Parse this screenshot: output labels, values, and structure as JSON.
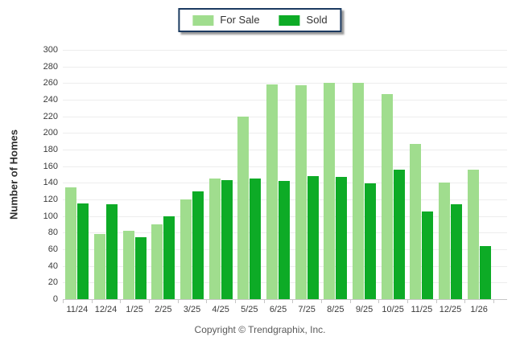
{
  "legend": {
    "items": [
      {
        "label": "For Sale",
        "color": "#a0dd8e"
      },
      {
        "label": "Sold",
        "color": "#0dab26"
      }
    ]
  },
  "chart_data": {
    "type": "bar",
    "title": "",
    "categories": [
      "11/24",
      "12/24",
      "1/25",
      "2/25",
      "3/25",
      "4/25",
      "5/25",
      "6/25",
      "7/25",
      "8/25",
      "9/25",
      "10/25",
      "11/25",
      "12/25",
      "1/26"
    ],
    "series": [
      {
        "name": "For Sale",
        "color": "#a0dd8e",
        "values": [
          135,
          78,
          82,
          90,
          120,
          145,
          220,
          258,
          257,
          260,
          260,
          247,
          187,
          140,
          156
        ]
      },
      {
        "name": "Sold",
        "color": "#0dab26",
        "values": [
          115,
          114,
          75,
          100,
          130,
          143,
          145,
          142,
          148,
          147,
          139,
          156,
          106,
          114,
          64
        ]
      }
    ],
    "xlabel": "",
    "ylabel": "Number of Homes",
    "ylim": [
      0,
      300
    ],
    "ytick_step": 20,
    "grid": true,
    "legend_position": "top-center"
  },
  "footer": {
    "copyright": "Copyright © Trendgraphix, Inc."
  },
  "colors": {
    "background": "#ffffff",
    "gridline": "#ededed",
    "axis_line": "#c6c6c6",
    "tick_text": "#3b3b3b",
    "legend_border": "#1b3a60"
  }
}
